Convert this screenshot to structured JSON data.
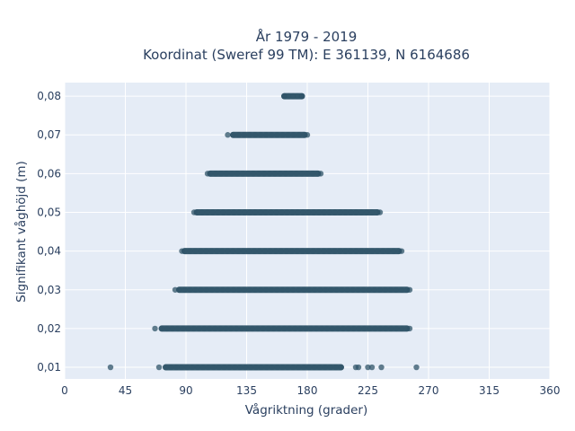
{
  "chart_data": {
    "type": "scatter",
    "title_line1": "År 1979 - 2019",
    "title_line2": "Koordinat (Sweref 99 TM): E 361139, N 6164686",
    "xlabel": "Vågriktning (grader)",
    "ylabel": "Signifikant våghöjd (m)",
    "xlim": [
      0,
      360
    ],
    "ylim": [
      0.007,
      0.0835
    ],
    "xticks": [
      0,
      45,
      90,
      135,
      180,
      225,
      270,
      315,
      360
    ],
    "xtick_labels": [
      "0",
      "45",
      "90",
      "135",
      "180",
      "225",
      "270",
      "315",
      "360"
    ],
    "yticks": [
      0.01,
      0.02,
      0.03,
      0.04,
      0.05,
      0.06,
      0.07,
      0.08
    ],
    "ytick_labels": [
      "0,01",
      "0,02",
      "0,03",
      "0,04",
      "0,05",
      "0,06",
      "0,07",
      "0,08"
    ],
    "grid": true,
    "marker_color": "#2f5468",
    "plot_bg": "#e5ecf6",
    "bands": [
      {
        "y": 0.08,
        "x_min": 163,
        "x_max": 176,
        "dense_min": 163,
        "dense_max": 176
      },
      {
        "y": 0.07,
        "x_min": 121,
        "x_max": 180,
        "dense_min": 125,
        "dense_max": 178
      },
      {
        "y": 0.06,
        "x_min": 106,
        "x_max": 190,
        "dense_min": 108,
        "dense_max": 188
      },
      {
        "y": 0.05,
        "x_min": 96,
        "x_max": 234,
        "dense_min": 98,
        "dense_max": 232
      },
      {
        "y": 0.04,
        "x_min": 87,
        "x_max": 250,
        "dense_min": 89,
        "dense_max": 248
      },
      {
        "y": 0.03,
        "x_min": 82,
        "x_max": 256,
        "dense_min": 85,
        "dense_max": 254
      },
      {
        "y": 0.02,
        "x_min": 67,
        "x_max": 256,
        "dense_min": 72,
        "dense_max": 254
      },
      {
        "y": 0.01,
        "x_min": 70,
        "x_max": 216,
        "dense_min": 75,
        "dense_max": 205
      }
    ],
    "outliers": [
      {
        "x": 34,
        "y": 0.01
      },
      {
        "x": 218,
        "y": 0.01
      },
      {
        "x": 225,
        "y": 0.01
      },
      {
        "x": 228,
        "y": 0.01
      },
      {
        "x": 235,
        "y": 0.01
      },
      {
        "x": 261,
        "y": 0.01
      }
    ]
  }
}
